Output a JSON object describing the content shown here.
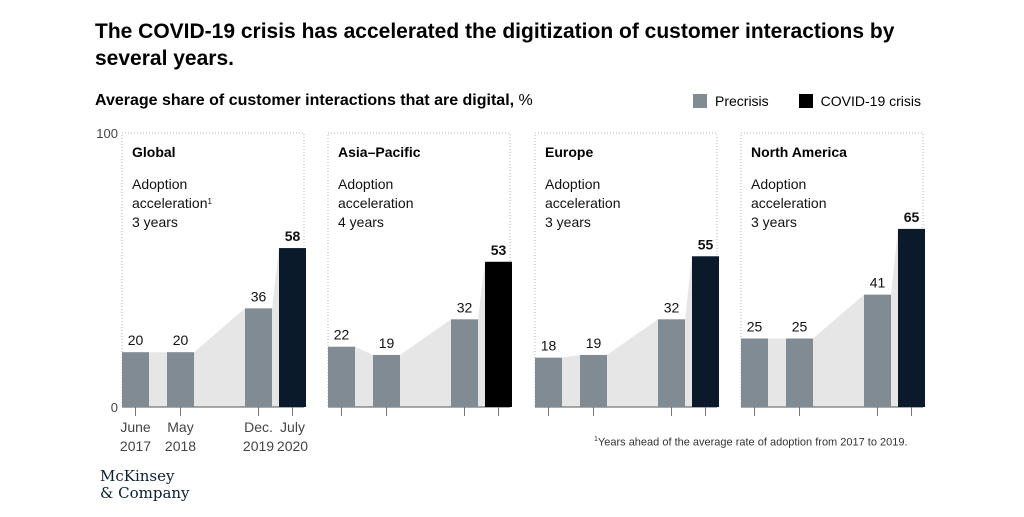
{
  "title": "The COVID-19 crisis has accelerated the digitization of customer interactions by several years.",
  "subtitle": "Average share of customer interactions that are digital,",
  "subtitle_unit": "%",
  "legend": [
    {
      "label": "Precrisis",
      "color": "#818b93"
    },
    {
      "label": "COVID-19 crisis",
      "color": "#000000"
    }
  ],
  "footnote": {
    "marker": "1",
    "text": "Years ahead of the average rate of adoption from 2017 to 2019."
  },
  "logo": {
    "line1": "McKinsey",
    "line2": "& Company"
  },
  "chart_data": {
    "type": "bar",
    "ylim": [
      0,
      100
    ],
    "y_ticks": [
      "0",
      "100"
    ],
    "categories": [
      {
        "line1": "June",
        "line2": "2017"
      },
      {
        "line1": "May",
        "line2": "2018"
      },
      {
        "line1": "Dec.",
        "line2": "2019"
      },
      {
        "line1": "July",
        "line2": "2020"
      }
    ],
    "category_types": [
      "Precrisis",
      "Precrisis",
      "Precrisis",
      "COVID-19 crisis"
    ],
    "panels": [
      {
        "region": "Global",
        "label_lines": [
          "Adoption",
          "acceleration",
          "3 years"
        ],
        "footnote_marker": "1",
        "values": [
          20,
          20,
          36,
          58
        ],
        "crisis_color": "#0b1a2b"
      },
      {
        "region": "Asia–Pacific",
        "label_lines": [
          "Adoption",
          "acceleration",
          "4 years"
        ],
        "footnote_marker": "",
        "values": [
          22,
          19,
          32,
          53
        ],
        "crisis_color": "#000000"
      },
      {
        "region": "Europe",
        "label_lines": [
          "Adoption",
          "acceleration",
          "3 years"
        ],
        "footnote_marker": "",
        "values": [
          18,
          19,
          32,
          55
        ],
        "crisis_color": "#0b1a2b"
      },
      {
        "region": "North America",
        "label_lines": [
          "Adoption",
          "acceleration",
          "3 years"
        ],
        "footnote_marker": "",
        "values": [
          25,
          25,
          41,
          65
        ],
        "crisis_color": "#0b1a2b"
      }
    ]
  }
}
